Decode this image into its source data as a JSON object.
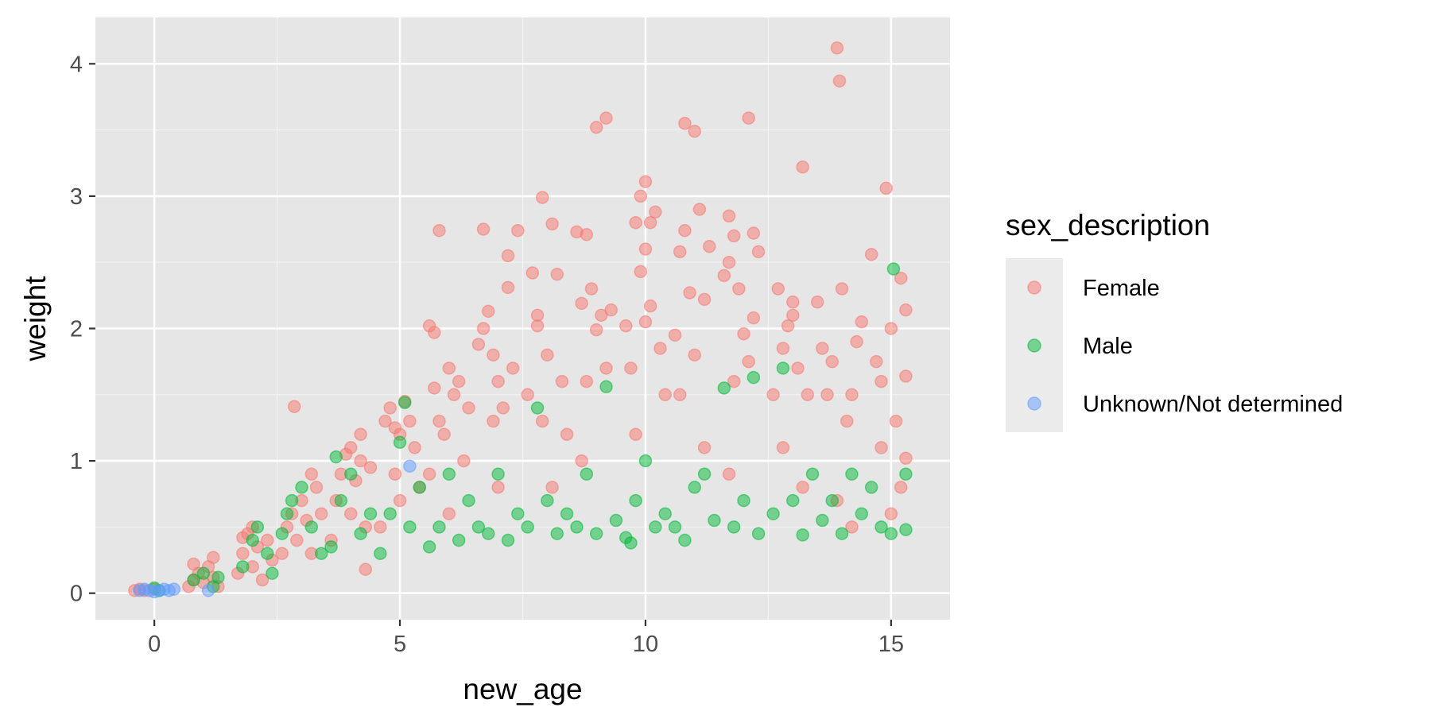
{
  "chart_data": {
    "type": "scatter",
    "title": "",
    "xlabel": "new_age",
    "ylabel": "weight",
    "xlim": [
      -1.2,
      16.2
    ],
    "ylim": [
      -0.2,
      4.35
    ],
    "x_ticks": [
      0,
      5,
      10,
      15
    ],
    "y_ticks": [
      0,
      1,
      2,
      3,
      4
    ],
    "x_tick_labels": [
      "0",
      "5",
      "10",
      "15"
    ],
    "y_tick_labels": [
      "0",
      "1",
      "2",
      "3",
      "4"
    ],
    "grid": true,
    "panel_background": "#E6E6E6",
    "point_opacity": 0.5,
    "legend": {
      "title": "sex_description",
      "position": "right",
      "entries": [
        "Female",
        "Male",
        "Unknown/Not determined"
      ]
    },
    "series": [
      {
        "name": "Female",
        "color": "#F8766D",
        "points": [
          [
            -0.4,
            0.02
          ],
          [
            -0.3,
            0.03
          ],
          [
            -0.2,
            0.02
          ],
          [
            0.0,
            0.03
          ],
          [
            0.7,
            0.05
          ],
          [
            0.8,
            0.1
          ],
          [
            0.9,
            0.15
          ],
          [
            1.0,
            0.08
          ],
          [
            1.1,
            0.2
          ],
          [
            1.2,
            0.12
          ],
          [
            1.3,
            0.05
          ],
          [
            1.2,
            0.27
          ],
          [
            0.8,
            0.22
          ],
          [
            1.7,
            0.15
          ],
          [
            1.8,
            0.3
          ],
          [
            1.9,
            0.45
          ],
          [
            2.0,
            0.2
          ],
          [
            2.1,
            0.35
          ],
          [
            2.2,
            0.1
          ],
          [
            2.3,
            0.4
          ],
          [
            2.4,
            0.25
          ],
          [
            1.8,
            0.42
          ],
          [
            2.0,
            0.5
          ],
          [
            2.6,
            0.3
          ],
          [
            2.7,
            0.5
          ],
          [
            2.8,
            0.6
          ],
          [
            2.9,
            0.4
          ],
          [
            3.0,
            0.7
          ],
          [
            3.1,
            0.55
          ],
          [
            3.2,
            0.3
          ],
          [
            3.3,
            0.8
          ],
          [
            2.85,
            1.41
          ],
          [
            3.2,
            0.9
          ],
          [
            3.4,
            0.6
          ],
          [
            3.6,
            0.4
          ],
          [
            3.7,
            0.7
          ],
          [
            3.8,
            0.9
          ],
          [
            3.9,
            1.05
          ],
          [
            4.0,
            0.6
          ],
          [
            4.1,
            0.85
          ],
          [
            4.2,
            1.0
          ],
          [
            4.3,
            0.5
          ],
          [
            4.4,
            0.95
          ],
          [
            4.3,
            0.18
          ],
          [
            4.0,
            1.1
          ],
          [
            4.2,
            1.2
          ],
          [
            4.6,
            0.5
          ],
          [
            4.7,
            1.3
          ],
          [
            4.8,
            1.4
          ],
          [
            4.9,
            0.9
          ],
          [
            5.0,
            1.2
          ],
          [
            5.1,
            1.45
          ],
          [
            5.2,
            1.3
          ],
          [
            5.3,
            1.1
          ],
          [
            5.4,
            0.8
          ],
          [
            4.9,
            1.25
          ],
          [
            5.0,
            0.7
          ],
          [
            5.6,
            0.9
          ],
          [
            5.6,
            2.02
          ],
          [
            5.7,
            1.97
          ],
          [
            5.7,
            1.55
          ],
          [
            5.8,
            1.3
          ],
          [
            5.9,
            1.2
          ],
          [
            6.0,
            1.7
          ],
          [
            6.1,
            1.5
          ],
          [
            6.2,
            1.6
          ],
          [
            6.3,
            1.0
          ],
          [
            5.8,
            2.74
          ],
          [
            6.0,
            0.6
          ],
          [
            6.4,
            1.4
          ],
          [
            6.6,
            1.88
          ],
          [
            6.7,
            2.0
          ],
          [
            6.7,
            2.75
          ],
          [
            6.8,
            2.13
          ],
          [
            6.9,
            1.8
          ],
          [
            7.0,
            1.6
          ],
          [
            7.1,
            1.4
          ],
          [
            7.2,
            2.55
          ],
          [
            7.2,
            2.31
          ],
          [
            7.3,
            1.7
          ],
          [
            7.4,
            2.74
          ],
          [
            6.9,
            1.3
          ],
          [
            7.0,
            0.8
          ],
          [
            7.6,
            1.5
          ],
          [
            7.7,
            2.42
          ],
          [
            7.8,
            2.1
          ],
          [
            7.8,
            2.02
          ],
          [
            7.9,
            2.99
          ],
          [
            8.0,
            1.8
          ],
          [
            8.1,
            2.79
          ],
          [
            8.2,
            2.41
          ],
          [
            8.3,
            1.6
          ],
          [
            8.4,
            1.2
          ],
          [
            7.9,
            1.3
          ],
          [
            8.1,
            0.8
          ],
          [
            8.6,
            2.73
          ],
          [
            8.7,
            2.19
          ],
          [
            8.8,
            2.71
          ],
          [
            8.9,
            2.3
          ],
          [
            9.0,
            3.52
          ],
          [
            9.1,
            2.1
          ],
          [
            9.2,
            3.59
          ],
          [
            9.3,
            2.14
          ],
          [
            9.0,
            1.99
          ],
          [
            8.8,
            1.6
          ],
          [
            9.2,
            1.7
          ],
          [
            8.7,
            1.0
          ],
          [
            9.6,
            2.02
          ],
          [
            9.7,
            1.7
          ],
          [
            9.8,
            2.8
          ],
          [
            9.9,
            3.0
          ],
          [
            10.0,
            3.11
          ],
          [
            10.0,
            2.6
          ],
          [
            10.1,
            2.8
          ],
          [
            10.2,
            2.88
          ],
          [
            10.3,
            1.85
          ],
          [
            9.9,
            2.43
          ],
          [
            10.0,
            2.05
          ],
          [
            10.1,
            2.17
          ],
          [
            10.4,
            1.5
          ],
          [
            9.8,
            1.2
          ],
          [
            10.6,
            1.95
          ],
          [
            10.7,
            2.58
          ],
          [
            10.8,
            2.74
          ],
          [
            10.8,
            3.55
          ],
          [
            10.9,
            2.27
          ],
          [
            11.0,
            3.49
          ],
          [
            11.1,
            2.9
          ],
          [
            11.2,
            2.22
          ],
          [
            11.3,
            2.62
          ],
          [
            10.7,
            1.5
          ],
          [
            11.0,
            1.8
          ],
          [
            11.2,
            1.1
          ],
          [
            11.6,
            2.4
          ],
          [
            11.7,
            2.5
          ],
          [
            11.7,
            2.85
          ],
          [
            11.8,
            2.7
          ],
          [
            11.9,
            2.3
          ],
          [
            12.0,
            1.96
          ],
          [
            12.1,
            3.59
          ],
          [
            12.2,
            2.72
          ],
          [
            12.3,
            2.58
          ],
          [
            12.2,
            2.08
          ],
          [
            11.8,
            1.6
          ],
          [
            12.1,
            1.75
          ],
          [
            11.7,
            0.9
          ],
          [
            12.6,
            1.5
          ],
          [
            12.7,
            2.3
          ],
          [
            12.8,
            1.85
          ],
          [
            12.9,
            2.02
          ],
          [
            13.0,
            2.2
          ],
          [
            13.1,
            1.7
          ],
          [
            13.2,
            3.22
          ],
          [
            13.3,
            1.5
          ],
          [
            13.0,
            2.1
          ],
          [
            12.8,
            1.1
          ],
          [
            13.2,
            0.8
          ],
          [
            13.5,
            2.2
          ],
          [
            13.6,
            1.85
          ],
          [
            13.7,
            1.5
          ],
          [
            13.8,
            1.75
          ],
          [
            13.9,
            4.12
          ],
          [
            13.95,
            3.87
          ],
          [
            14.0,
            2.3
          ],
          [
            14.1,
            1.3
          ],
          [
            14.2,
            1.5
          ],
          [
            14.3,
            1.9
          ],
          [
            14.4,
            2.05
          ],
          [
            13.9,
            0.7
          ],
          [
            14.2,
            0.5
          ],
          [
            14.6,
            2.56
          ],
          [
            14.7,
            1.75
          ],
          [
            14.8,
            1.6
          ],
          [
            14.9,
            3.06
          ],
          [
            15.0,
            2.0
          ],
          [
            15.1,
            1.3
          ],
          [
            15.2,
            2.38
          ],
          [
            15.3,
            2.14
          ],
          [
            15.3,
            1.64
          ],
          [
            15.3,
            1.02
          ],
          [
            14.8,
            1.1
          ],
          [
            15.0,
            0.6
          ],
          [
            15.2,
            0.8
          ]
        ]
      },
      {
        "name": "Male",
        "color": "#00BA38",
        "points": [
          [
            0.0,
            0.04
          ],
          [
            0.1,
            0.02
          ],
          [
            0.8,
            0.1
          ],
          [
            1.0,
            0.15
          ],
          [
            1.2,
            0.05
          ],
          [
            1.3,
            0.12
          ],
          [
            1.8,
            0.2
          ],
          [
            2.0,
            0.4
          ],
          [
            2.1,
            0.5
          ],
          [
            2.3,
            0.3
          ],
          [
            2.4,
            0.15
          ],
          [
            2.6,
            0.45
          ],
          [
            2.7,
            0.6
          ],
          [
            2.8,
            0.7
          ],
          [
            3.0,
            0.8
          ],
          [
            3.2,
            0.5
          ],
          [
            3.4,
            0.3
          ],
          [
            3.6,
            0.35
          ],
          [
            3.7,
            1.03
          ],
          [
            3.8,
            0.7
          ],
          [
            4.0,
            0.9
          ],
          [
            4.2,
            0.45
          ],
          [
            4.4,
            0.6
          ],
          [
            4.6,
            0.3
          ],
          [
            4.8,
            0.6
          ],
          [
            5.0,
            1.14
          ],
          [
            5.1,
            1.44
          ],
          [
            5.2,
            0.5
          ],
          [
            5.4,
            0.8
          ],
          [
            5.6,
            0.35
          ],
          [
            5.8,
            0.5
          ],
          [
            6.0,
            0.9
          ],
          [
            6.2,
            0.4
          ],
          [
            6.4,
            0.7
          ],
          [
            6.6,
            0.5
          ],
          [
            6.8,
            0.45
          ],
          [
            7.0,
            0.9
          ],
          [
            7.2,
            0.4
          ],
          [
            7.4,
            0.6
          ],
          [
            7.6,
            0.5
          ],
          [
            7.8,
            1.4
          ],
          [
            8.0,
            0.7
          ],
          [
            8.2,
            0.45
          ],
          [
            8.4,
            0.6
          ],
          [
            8.6,
            0.5
          ],
          [
            8.8,
            0.9
          ],
          [
            9.0,
            0.45
          ],
          [
            9.2,
            1.56
          ],
          [
            9.4,
            0.55
          ],
          [
            9.6,
            0.42
          ],
          [
            9.7,
            0.38
          ],
          [
            9.8,
            0.7
          ],
          [
            10.0,
            1.0
          ],
          [
            10.2,
            0.5
          ],
          [
            10.4,
            0.6
          ],
          [
            10.6,
            0.5
          ],
          [
            10.8,
            0.4
          ],
          [
            11.0,
            0.8
          ],
          [
            11.2,
            0.9
          ],
          [
            11.4,
            0.55
          ],
          [
            11.6,
            1.55
          ],
          [
            11.8,
            0.5
          ],
          [
            12.0,
            0.7
          ],
          [
            12.2,
            1.63
          ],
          [
            12.3,
            0.45
          ],
          [
            12.6,
            0.6
          ],
          [
            12.8,
            1.7
          ],
          [
            13.0,
            0.7
          ],
          [
            13.2,
            0.44
          ],
          [
            13.4,
            0.9
          ],
          [
            13.6,
            0.55
          ],
          [
            13.8,
            0.7
          ],
          [
            14.0,
            0.45
          ],
          [
            14.2,
            0.9
          ],
          [
            14.4,
            0.6
          ],
          [
            14.6,
            0.8
          ],
          [
            14.8,
            0.5
          ],
          [
            15.0,
            0.45
          ],
          [
            15.05,
            2.45
          ],
          [
            15.3,
            0.48
          ],
          [
            15.3,
            0.9
          ]
        ]
      },
      {
        "name": "Unknown/Not determined",
        "color": "#619CFF",
        "points": [
          [
            -0.3,
            0.02
          ],
          [
            -0.2,
            0.03
          ],
          [
            -0.1,
            0.02
          ],
          [
            0.0,
            0.01
          ],
          [
            0.1,
            0.02
          ],
          [
            0.2,
            0.03
          ],
          [
            0.3,
            0.02
          ],
          [
            0.4,
            0.03
          ],
          [
            1.1,
            0.02
          ],
          [
            5.2,
            0.96
          ]
        ]
      }
    ]
  }
}
